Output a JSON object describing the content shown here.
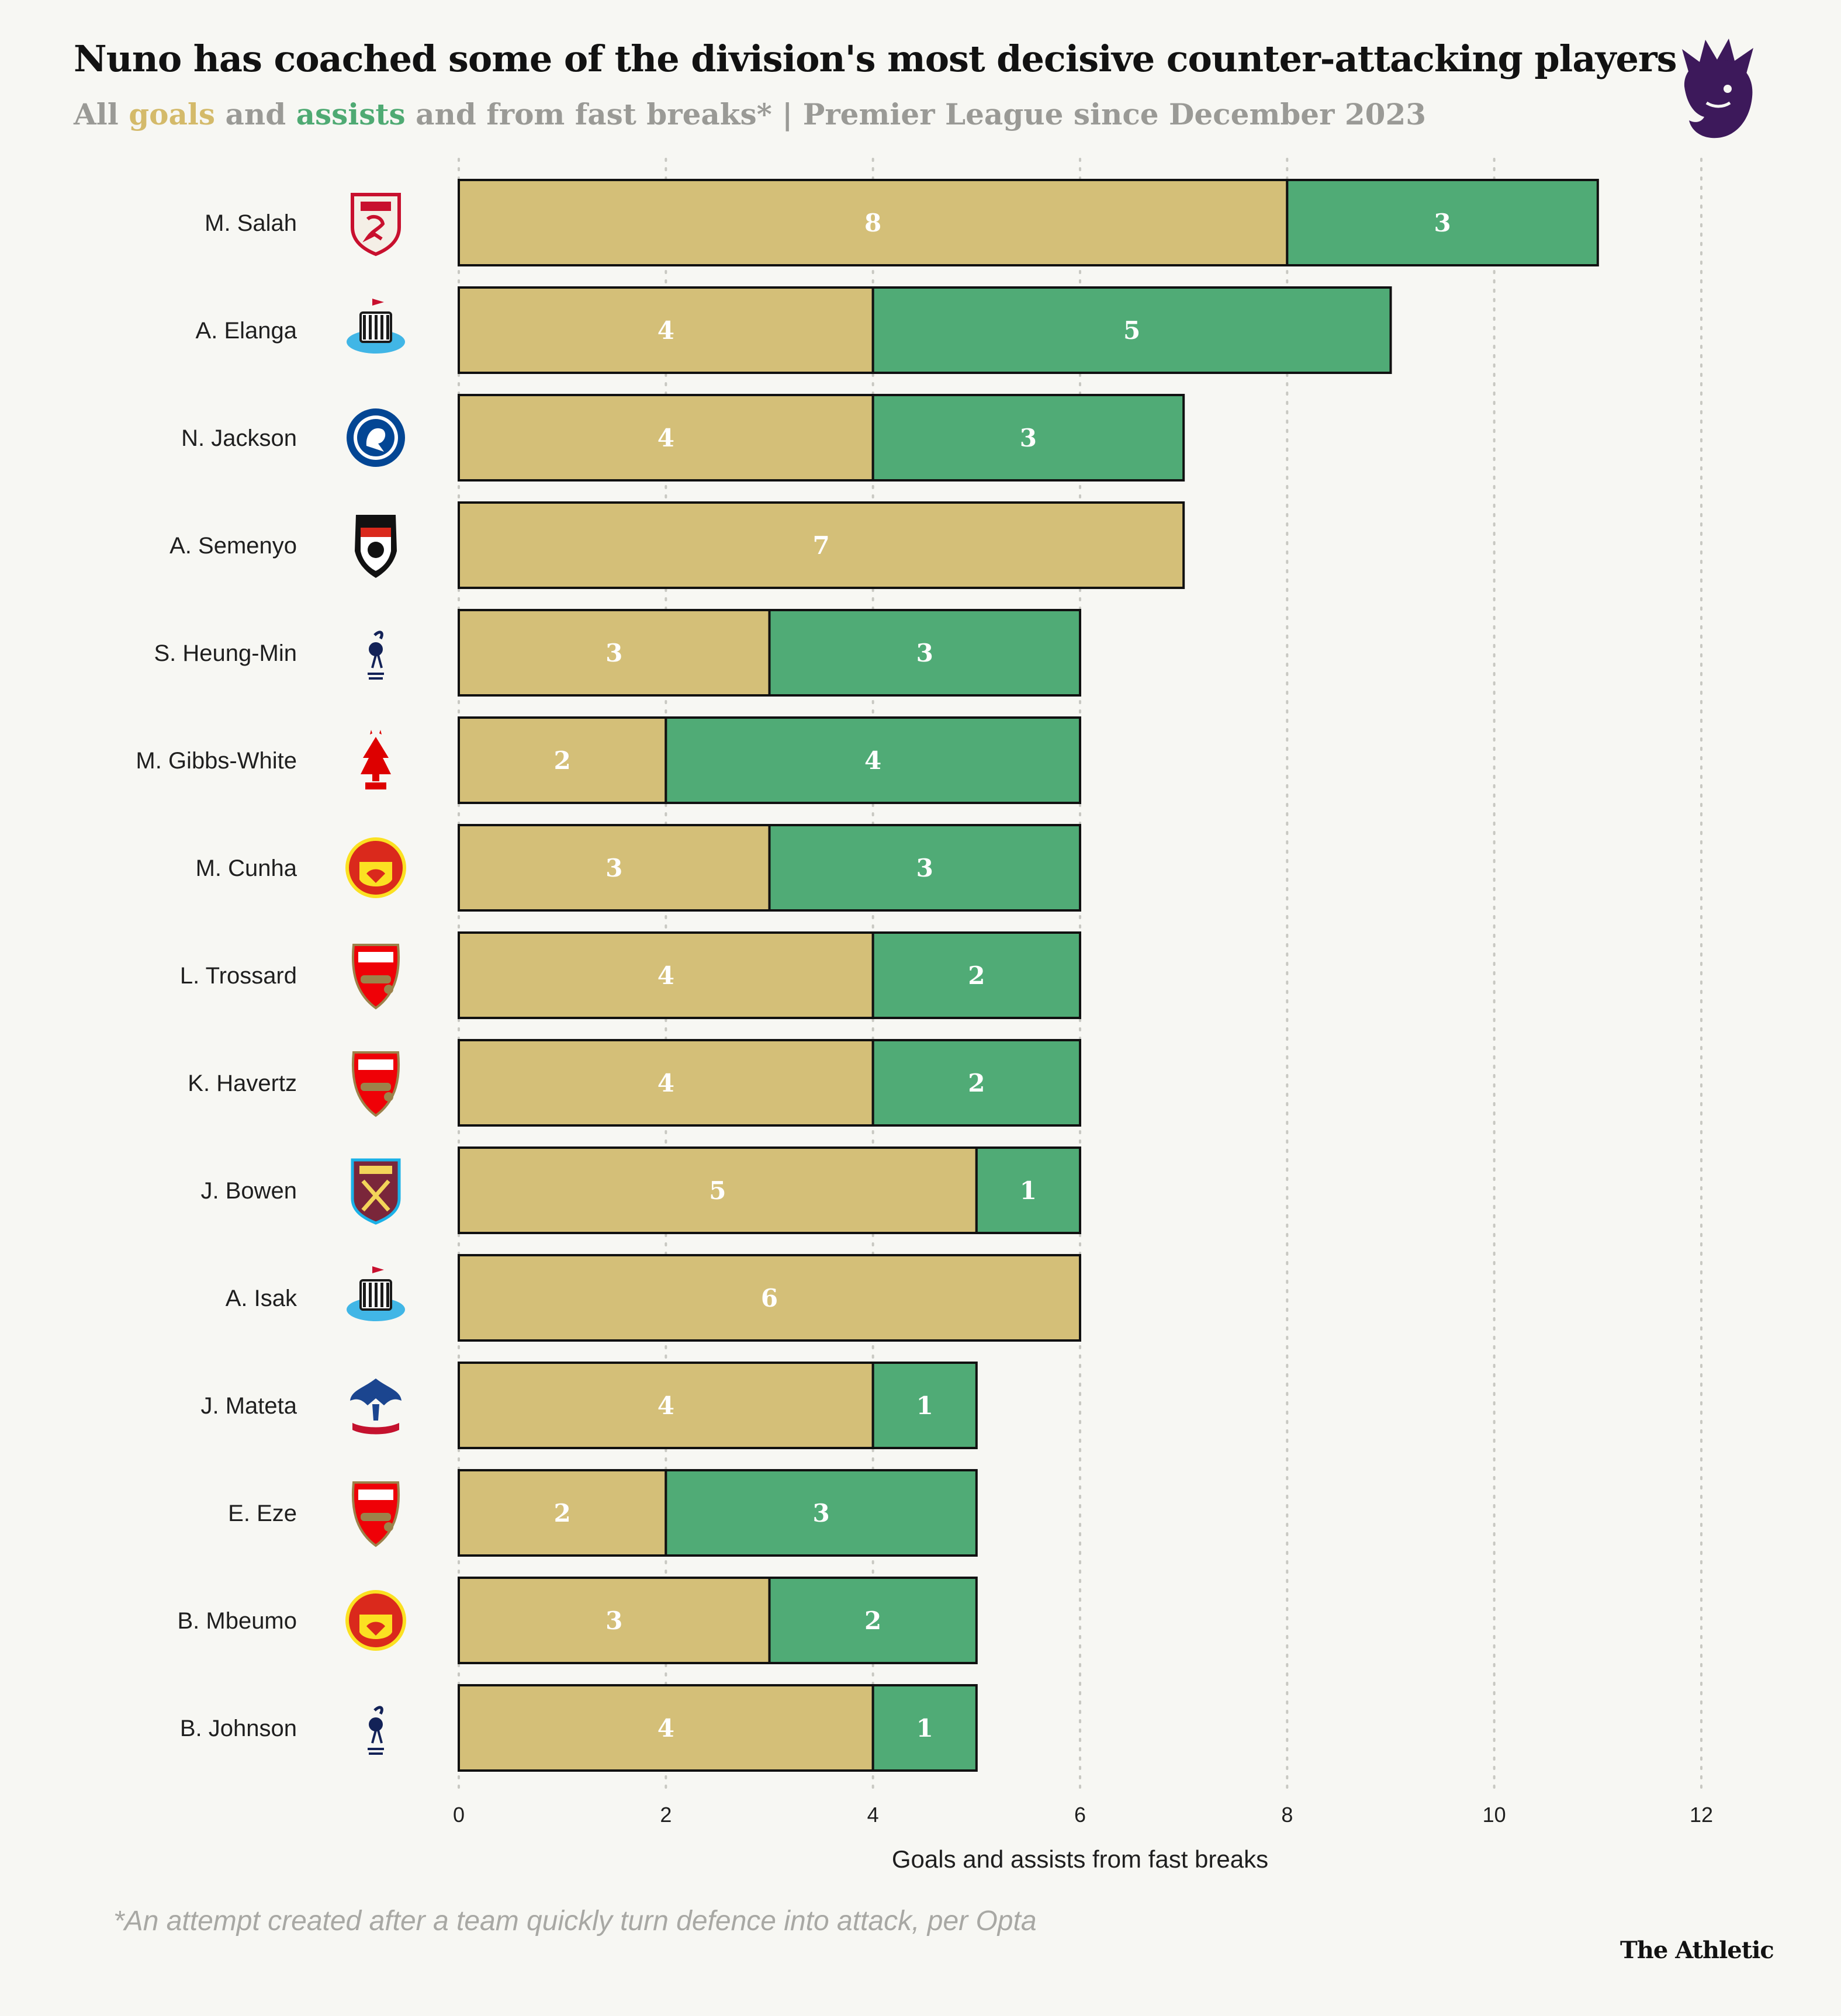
{
  "title": "Nuno has coached some of the division's most decisive counter-attacking players",
  "subtitle": {
    "prefix": "All ",
    "goals_word": "goals",
    "and_word": " and ",
    "assists_word": "assists",
    "suffix": " and from fast breaks* | Premier League since December 2023"
  },
  "footnote": "*An attempt created after a team quickly turn defence into attack, per Opta",
  "brand": "The Athletic",
  "colors": {
    "goals": "#d4bf78",
    "assists": "#50ab76",
    "title": "#121212",
    "subtitle": "#9a9a96",
    "grid": "#c8c8c2"
  },
  "logo": {
    "icon": "premier-league-lion-icon"
  },
  "chart_data": {
    "type": "bar",
    "orientation": "horizontal",
    "stacked": true,
    "categories": [
      "M. Salah",
      "A. Elanga",
      "N. Jackson",
      "A. Semenyo",
      "S. Heung-Min",
      "M. Gibbs-White",
      "M. Cunha",
      "L. Trossard",
      "K. Havertz",
      "J. Bowen",
      "A. Isak",
      "J. Mateta",
      "E. Eze",
      "B. Mbeumo",
      "B. Johnson"
    ],
    "clubs": [
      "liverpool",
      "newcastle",
      "chelsea",
      "bournemouth",
      "tottenham",
      "nottingham-forest",
      "manchester-united",
      "arsenal",
      "arsenal",
      "west-ham",
      "newcastle",
      "crystal-palace",
      "arsenal",
      "manchester-united",
      "tottenham"
    ],
    "series": [
      {
        "name": "goals",
        "values": [
          8,
          4,
          4,
          7,
          3,
          2,
          3,
          4,
          4,
          5,
          6,
          4,
          2,
          3,
          4
        ]
      },
      {
        "name": "assists",
        "values": [
          3,
          5,
          3,
          0,
          3,
          4,
          3,
          2,
          2,
          1,
          0,
          1,
          3,
          2,
          1
        ]
      }
    ],
    "xlabel": "Goals and assists from fast breaks",
    "ylabel": "",
    "xlim": [
      0,
      12
    ],
    "xticks": [
      0,
      2,
      4,
      6,
      8,
      10,
      12
    ],
    "grid": true
  }
}
